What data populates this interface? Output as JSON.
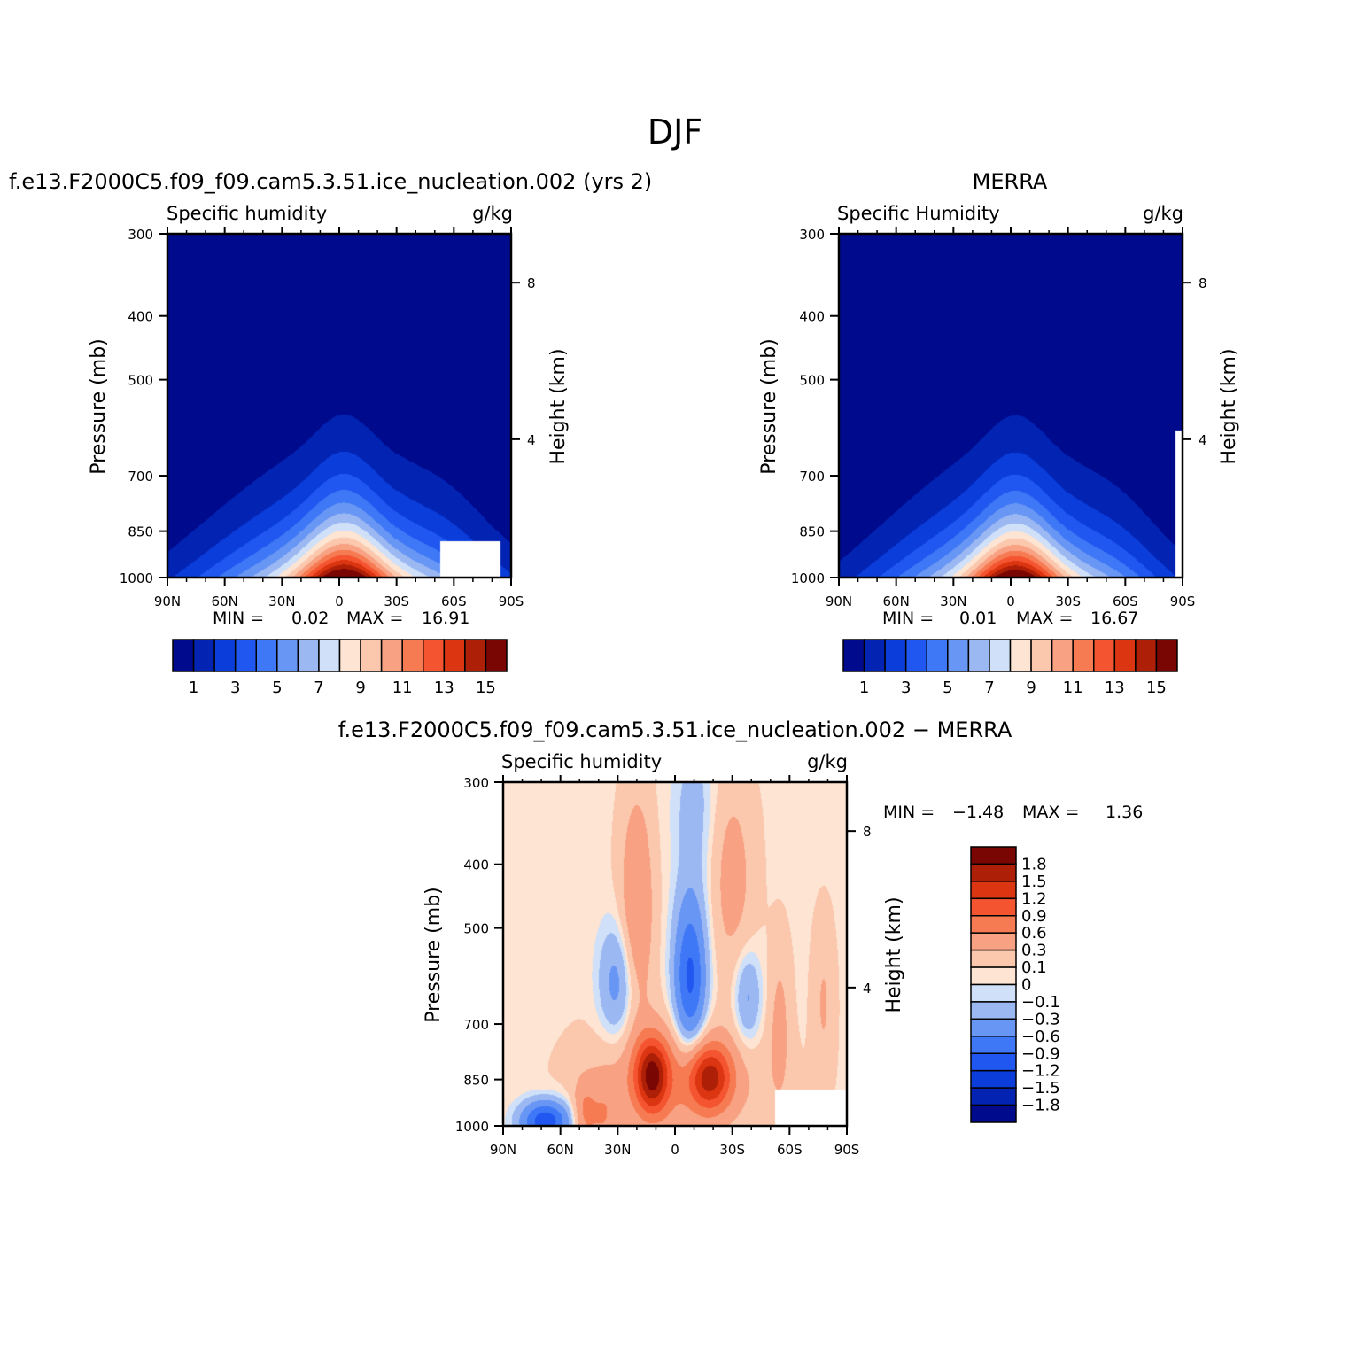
{
  "page_title": "DJF",
  "chart_data": [
    {
      "type": "heatmap",
      "title": "f.e13.F2000C5.f09_f09.cam5.3.51.ice_nucleation.002 (yrs 2)",
      "variable": "Specific humidity",
      "units": "g/kg",
      "ylabel": "Pressure (mb)",
      "ylabel_right": "Height (km)",
      "x_ticks": [
        "90N",
        "60N",
        "30N",
        "0",
        "30S",
        "60S",
        "90S"
      ],
      "y_ticks": [
        "300",
        "400",
        "500",
        "700",
        "850",
        "1000"
      ],
      "height_ticks": [
        "8",
        "4"
      ],
      "min_label": "MIN =",
      "min_value": "0.02",
      "max_label": "MAX =",
      "max_value": "16.91",
      "colorbar_labels": [
        "1",
        "3",
        "5",
        "7",
        "9",
        "11",
        "13",
        "15"
      ],
      "levels": [
        1,
        2,
        3,
        4,
        5,
        6,
        7,
        8,
        9,
        10,
        11,
        12,
        13,
        14,
        15
      ],
      "peak": 16.91
    },
    {
      "type": "heatmap",
      "title": "MERRA",
      "variable": "Specific Humidity",
      "units": "g/kg",
      "ylabel": "Pressure (mb)",
      "ylabel_right": "Height (km)",
      "x_ticks": [
        "90N",
        "60N",
        "30N",
        "0",
        "30S",
        "60S",
        "90S"
      ],
      "y_ticks": [
        "300",
        "400",
        "500",
        "700",
        "850",
        "1000"
      ],
      "height_ticks": [
        "8",
        "4"
      ],
      "min_label": "MIN =",
      "min_value": "0.01",
      "max_label": "MAX =",
      "max_value": "16.67",
      "colorbar_labels": [
        "1",
        "3",
        "5",
        "7",
        "9",
        "11",
        "13",
        "15"
      ],
      "levels": [
        1,
        2,
        3,
        4,
        5,
        6,
        7,
        8,
        9,
        10,
        11,
        12,
        13,
        14,
        15
      ],
      "peak": 16.67
    },
    {
      "type": "heatmap",
      "title": "f.e13.F2000C5.f09_f09.cam5.3.51.ice_nucleation.002 − MERRA",
      "variable": "Specific humidity",
      "units": "g/kg",
      "ylabel": "Pressure (mb)",
      "ylabel_right": "Height (km)",
      "x_ticks": [
        "90N",
        "60N",
        "30N",
        "0",
        "30S",
        "60S",
        "90S"
      ],
      "y_ticks": [
        "300",
        "400",
        "500",
        "700",
        "850",
        "1000"
      ],
      "height_ticks": [
        "8",
        "4"
      ],
      "min_label": "MIN =",
      "min_value": "−1.48",
      "max_label": "MAX =",
      "max_value": "1.36",
      "colorbar_labels": [
        "1.8",
        "1.5",
        "1.2",
        "0.9",
        "0.6",
        "0.3",
        "0.1",
        "0",
        "−0.1",
        "−0.3",
        "−0.6",
        "−0.9",
        "−1.2",
        "−1.5",
        "−1.8"
      ]
    }
  ],
  "colors": {
    "abs_scale": [
      "#000a8c",
      "#0323b3",
      "#0b3ddb",
      "#1f57f0",
      "#3f78f6",
      "#6896f4",
      "#9bb8f3",
      "#cfe0f8",
      "#fde4d3",
      "#fbc7ad",
      "#f8a283",
      "#f67b53",
      "#f45530",
      "#dc3511",
      "#ad1f07",
      "#7a0603"
    ],
    "diff_scale": [
      "#7a0603",
      "#ad1f07",
      "#dc3511",
      "#f45530",
      "#f67b53",
      "#f8a283",
      "#fbc7ad",
      "#fde4d3",
      "#cfe0f8",
      "#9bb8f3",
      "#6896f4",
      "#3f78f6",
      "#1f57f0",
      "#0b3ddb",
      "#0323b3",
      "#000a8c"
    ]
  }
}
